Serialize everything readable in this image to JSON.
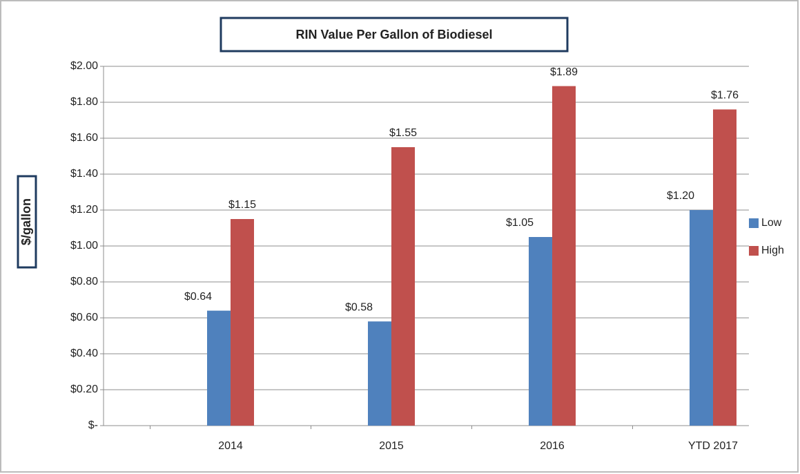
{
  "chart_data": {
    "type": "bar",
    "title": "RIN Value Per Gallon of Biodiesel",
    "y_label": "$/gallon",
    "categories": [
      "2014",
      "2015",
      "2016",
      "YTD 2017"
    ],
    "series": [
      {
        "name": "Low",
        "color": "#4f81bd",
        "values": [
          0.64,
          0.58,
          1.05,
          1.2
        ],
        "value_labels": [
          "$0.64",
          "$0.58",
          "$1.05",
          "$1.20"
        ]
      },
      {
        "name": "High",
        "color": "#c0504d",
        "values": [
          1.15,
          1.55,
          1.89,
          1.76
        ],
        "value_labels": [
          "$1.15",
          "$1.55",
          "$1.89",
          "$1.76"
        ]
      }
    ],
    "ylim": [
      0,
      2
    ],
    "yticks": [
      {
        "value": 0,
        "label": "$-"
      },
      {
        "value": 0.2,
        "label": "$0.20"
      },
      {
        "value": 0.4,
        "label": "$0.40"
      },
      {
        "value": 0.6,
        "label": "$0.60"
      },
      {
        "value": 0.8,
        "label": "$0.80"
      },
      {
        "value": 1,
        "label": "$1.00"
      },
      {
        "value": 1.2,
        "label": "$1.20"
      },
      {
        "value": 1.4,
        "label": "$1.40"
      },
      {
        "value": 1.6,
        "label": "$1.60"
      },
      {
        "value": 1.8,
        "label": "$1.80"
      },
      {
        "value": 2,
        "label": "$2.00"
      }
    ],
    "grid": true,
    "legend": "right"
  }
}
